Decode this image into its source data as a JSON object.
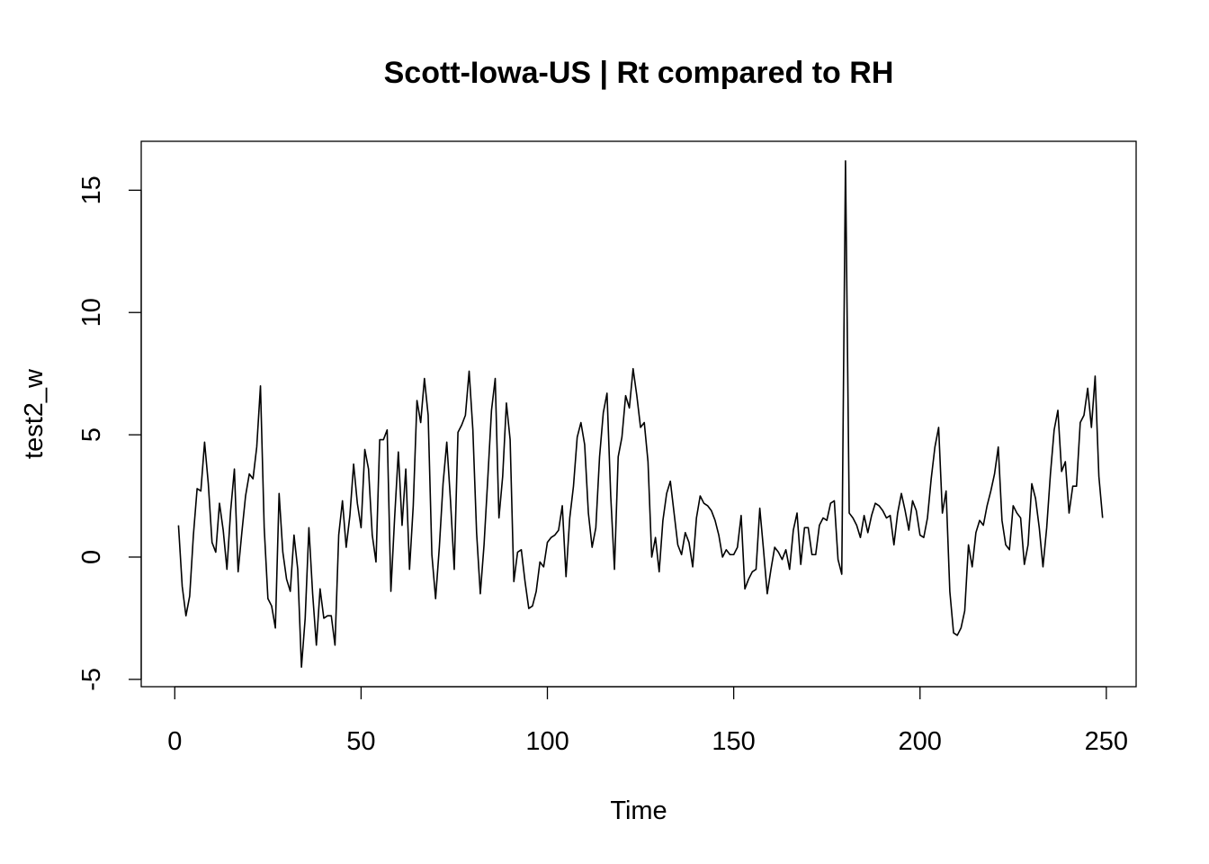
{
  "chart_data": {
    "type": "line",
    "title": "Scott-Iowa-US | Rt compared to RH",
    "xlabel": "Time",
    "ylabel": "test2_w",
    "xlim": [
      -9,
      258
    ],
    "ylim": [
      -5.3,
      17.0
    ],
    "x_ticks": [
      0,
      50,
      100,
      150,
      200,
      250
    ],
    "x_tick_labels": [
      "0",
      "50",
      "100",
      "150",
      "200",
      "250"
    ],
    "y_ticks": [
      -5,
      0,
      5,
      10,
      15
    ],
    "y_tick_labels": [
      "-5",
      "0",
      "5",
      "10",
      "15"
    ],
    "grid": false,
    "line_color": "#000000",
    "x_start": 1,
    "series": [
      {
        "values": [
          1.3,
          -1.2,
          -2.4,
          -1.6,
          0.9,
          2.8,
          2.7,
          4.7,
          3.0,
          0.6,
          0.2,
          2.2,
          1.1,
          -0.5,
          1.9,
          3.6,
          -0.6,
          1.0,
          2.5,
          3.4,
          3.2,
          4.5,
          7.0,
          1.2,
          -1.7,
          -2.0,
          -2.9,
          2.6,
          0.2,
          -0.9,
          -1.4,
          0.9,
          -0.5,
          -4.5,
          -2.5,
          1.2,
          -1.5,
          -3.6,
          -1.3,
          -2.5,
          -2.4,
          -2.4,
          -3.6,
          0.9,
          2.3,
          0.4,
          1.7,
          3.8,
          2.2,
          1.2,
          4.4,
          3.6,
          0.9,
          -0.2,
          4.8,
          4.8,
          5.2,
          -1.4,
          1.6,
          4.3,
          1.3,
          3.6,
          -0.5,
          2.1,
          6.4,
          5.5,
          7.3,
          5.8,
          0.1,
          -1.7,
          0.4,
          3.0,
          4.7,
          2.3,
          -0.5,
          5.1,
          5.4,
          5.8,
          7.6,
          5.2,
          1.0,
          -1.5,
          0.5,
          3.2,
          6.0,
          7.3,
          1.6,
          3.3,
          6.3,
          4.8,
          -1.0,
          0.2,
          0.3,
          -1.0,
          -2.1,
          -2.0,
          -1.4,
          -0.2,
          -0.4,
          0.6,
          0.8,
          0.9,
          1.1,
          2.1,
          -0.8,
          1.6,
          2.9,
          4.9,
          5.5,
          4.6,
          1.8,
          0.4,
          1.2,
          4.1,
          5.9,
          6.7,
          2.5,
          -0.5,
          4.1,
          4.9,
          6.6,
          6.1,
          7.7,
          6.6,
          5.3,
          5.5,
          3.9,
          0.0,
          0.8,
          -0.6,
          1.5,
          2.6,
          3.1,
          1.8,
          0.5,
          0.1,
          1.0,
          0.6,
          -0.4,
          1.6,
          2.5,
          2.2,
          2.1,
          1.9,
          1.5,
          0.9,
          0.0,
          0.3,
          0.1,
          0.1,
          0.4,
          1.7,
          -1.3,
          -0.9,
          -0.6,
          -0.5,
          2.0,
          0.3,
          -1.5,
          -0.5,
          0.4,
          0.2,
          -0.1,
          0.3,
          -0.5,
          1.1,
          1.8,
          -0.3,
          1.2,
          1.2,
          0.1,
          0.1,
          1.3,
          1.6,
          1.5,
          2.2,
          2.3,
          -0.1,
          -0.7,
          16.2,
          1.8,
          1.6,
          1.3,
          0.8,
          1.7,
          1.0,
          1.7,
          2.2,
          2.1,
          1.9,
          1.6,
          1.7,
          0.5,
          1.8,
          2.6,
          1.9,
          1.1,
          2.3,
          1.9,
          0.9,
          0.8,
          1.6,
          3.2,
          4.5,
          5.3,
          1.8,
          2.7,
          -1.4,
          -3.1,
          -3.2,
          -2.9,
          -2.2,
          0.5,
          -0.4,
          1.0,
          1.5,
          1.3,
          2.1,
          2.7,
          3.4,
          4.5,
          1.5,
          0.5,
          0.3,
          2.1,
          1.8,
          1.6,
          -0.3,
          0.5,
          3.0,
          2.4,
          1.2,
          -0.4,
          1.2,
          3.4,
          5.2,
          6.0,
          3.5,
          3.9,
          1.8,
          2.9,
          2.9,
          5.5,
          5.8,
          6.9,
          5.3,
          7.4,
          3.3,
          1.6
        ]
      }
    ]
  }
}
